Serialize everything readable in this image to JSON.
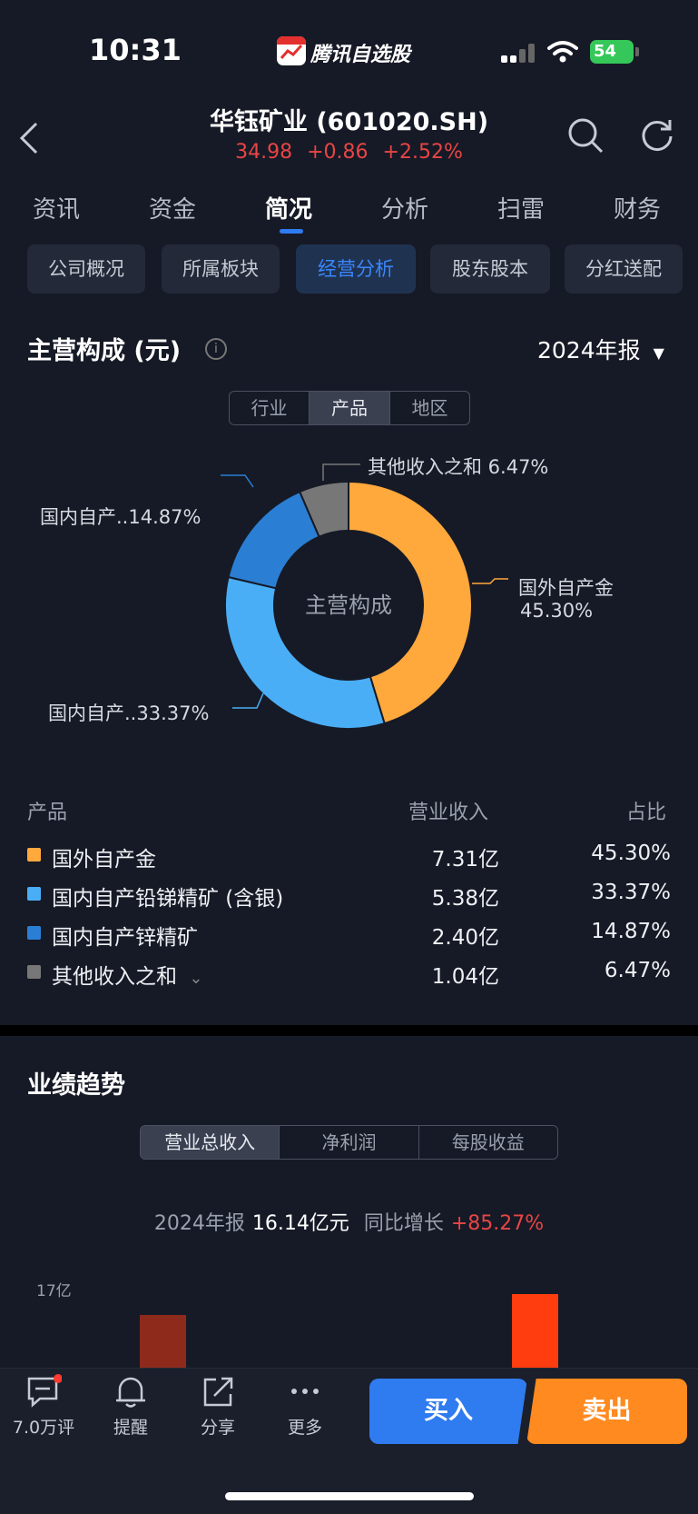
{
  "status": {
    "time": "10:31",
    "app_name": "腾讯自选股",
    "battery": "54"
  },
  "header": {
    "title": "华钰矿业 (601020.SH)",
    "price": "34.98",
    "change": "+0.86",
    "change_pct": "+2.52%"
  },
  "tabs": [
    "资讯",
    "资金",
    "简况",
    "分析",
    "扫雷",
    "财务"
  ],
  "active_tab": "简况",
  "subtabs": [
    "公司概况",
    "所属板块",
    "经营分析",
    "股东股本",
    "分红送配"
  ],
  "active_subtab": "经营分析",
  "composition": {
    "title": "主营构成 (元)",
    "info": "i",
    "period": "2024年报",
    "segments": [
      "行业",
      "产品",
      "地区"
    ],
    "active_segment": "产品",
    "center_label": "主营构成",
    "pie_labels": {
      "a1": "国外自产金",
      "a2": "45.30%",
      "b": "国内自产..33.37%",
      "c": "国内自产..14.87%",
      "d": "其他收入之和 6.47%"
    },
    "table_headers": {
      "name": "产品",
      "revenue": "营业收入",
      "ratio": "占比"
    },
    "rows": [
      {
        "name": "国外自产金",
        "revenue": "7.31亿",
        "ratio": "45.30%",
        "color": "#ffa83c"
      },
      {
        "name": "国内自产铅锑精矿 (含银)",
        "revenue": "5.38亿",
        "ratio": "33.37%",
        "color": "#4aaef6"
      },
      {
        "name": "国内自产锌精矿",
        "revenue": "2.40亿",
        "ratio": "14.87%",
        "color": "#2a7fd4"
      },
      {
        "name": "其他收入之和",
        "revenue": "1.04亿",
        "ratio": "6.47%",
        "color": "#777777"
      }
    ]
  },
  "chart_data": {
    "type": "pie",
    "center_label": "主营构成",
    "slices": [
      {
        "label": "国外自产金",
        "value": 45.3,
        "color": "#ffa83c"
      },
      {
        "label": "国内自产铅锑精矿 (含银)",
        "value": 33.37,
        "color": "#4aaef6"
      },
      {
        "label": "国内自产锌精矿",
        "value": 14.87,
        "color": "#2a7fd4"
      },
      {
        "label": "其他收入之和",
        "value": 6.47,
        "color": "#777777"
      }
    ]
  },
  "trend": {
    "title": "业绩趋势",
    "segments": [
      "营业总收入",
      "净利润",
      "每股收益"
    ],
    "active_segment": "营业总收入",
    "period": "2024年报",
    "value": "16.14亿元",
    "yoy_label": "同比增长",
    "yoy": "+85.27%",
    "y_tick": "17亿"
  },
  "bottom": {
    "comments": "7.0万评",
    "remind": "提醒",
    "share": "分享",
    "more": "更多",
    "buy": "买入",
    "sell": "卖出"
  }
}
